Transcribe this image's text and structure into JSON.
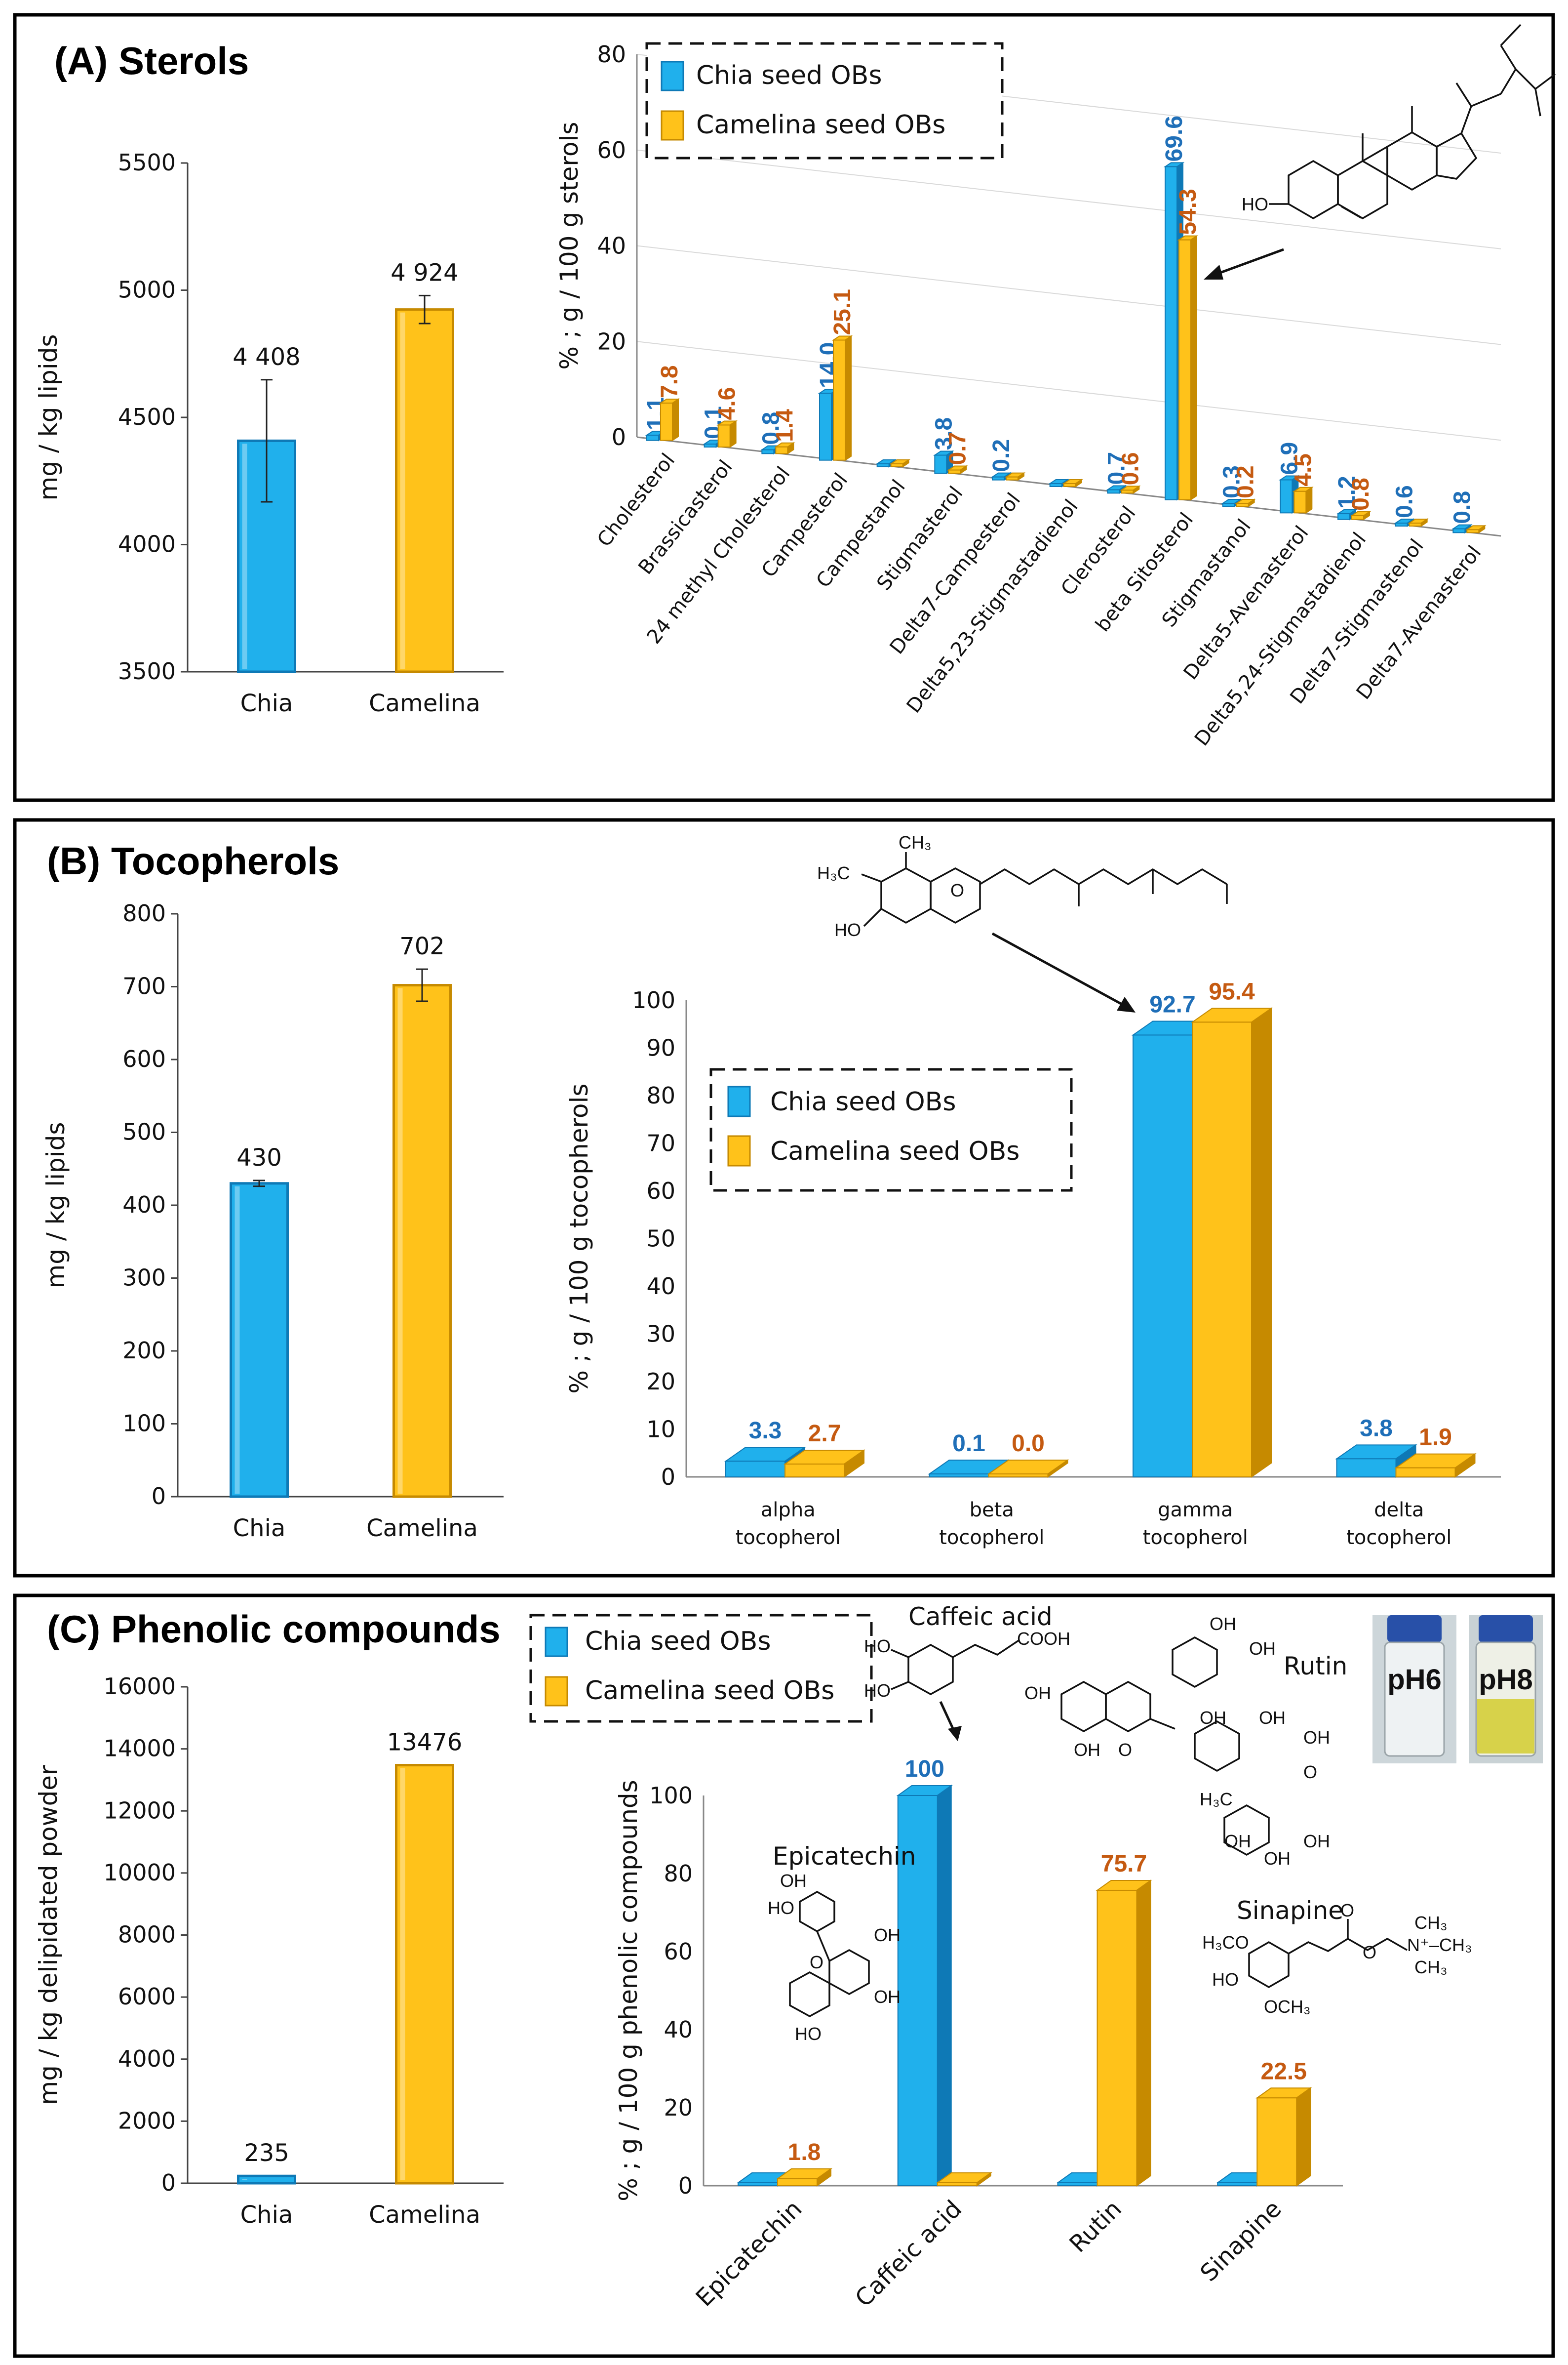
{
  "colors": {
    "chia": "#20B0EC",
    "chia_dark": "#0E79B6",
    "camelina": "#FFC21A",
    "camelina_dark": "#C68A00",
    "chia_label": "#1F6FB8",
    "camelina_label": "#C55A11"
  },
  "legend": {
    "chia": "Chia seed OBs",
    "camelina": "Camelina seed OBs"
  },
  "panels": {
    "A": {
      "title": "(A) Sterols"
    },
    "B": {
      "title": "(B) Tocopherols"
    },
    "C": {
      "title": "(C) Phenolic compounds"
    }
  },
  "structures": {
    "ho": "HO",
    "caffeic": {
      "name": "Caffeic acid",
      "group": "COOH",
      "ho1": "HO",
      "ho2": "HO"
    },
    "rutin": {
      "name": "Rutin",
      "oh": "OH",
      "o": "O",
      "h3c": "H₃C"
    },
    "epicatechin": {
      "name": "Epicatechin",
      "oh": "OH",
      "ho": "HO",
      "o": "O"
    },
    "sinapine": {
      "name": "Sinapine",
      "och3a": "H₃CO",
      "och3b": "OCH₃",
      "ho": "HO",
      "o": "O",
      "n": "N⁺–CH₃",
      "ch3a": "CH₃",
      "ch3b": "CH₃"
    },
    "tocopherol": {
      "ch3": "CH₃",
      "h3c": "H₃C",
      "ho": "HO",
      "o": "O"
    }
  },
  "vials": {
    "left": "pH6",
    "right": "pH8"
  },
  "chart_data": [
    {
      "id": "A-left",
      "type": "bar",
      "title": "",
      "ylabel": "mg / kg lipids",
      "ylim": [
        3500,
        5500
      ],
      "yticks": [
        "3500",
        "4000",
        "4500",
        "5000",
        "5500"
      ],
      "categories": [
        "Chia",
        "Camelina"
      ],
      "values": [
        4408,
        4924
      ],
      "value_labels": [
        "4 408",
        "4 924"
      ],
      "errors": [
        240,
        55
      ]
    },
    {
      "id": "A-right",
      "type": "bar",
      "title": "",
      "ylabel": "% ; g / 100 g sterols",
      "ylim": [
        0,
        80
      ],
      "yticks": [
        "0",
        "20",
        "40",
        "60",
        "80"
      ],
      "categories": [
        "Cholesterol",
        "Brassicasterol",
        "24 methyl Cholesterol",
        "Campesterol",
        "Campestanol",
        "Stigmasterol",
        "Delta7-Campesterol",
        "Delta5,23-Stigmastadienol",
        "Clerosterol",
        "beta Sitosterol",
        "Stigmastanol",
        "Delta5-Avenasterol",
        "Delta5,24-Stigmastadienol",
        "Delta7-Stigmastenol",
        "Delta7-Avenasterol"
      ],
      "series": [
        {
          "name": "Chia seed OBs",
          "values": [
            1.1,
            0.1,
            0.8,
            14.0,
            0,
            3.8,
            0.2,
            0,
            0.7,
            69.6,
            0.3,
            6.9,
            1.2,
            0.6,
            0.8
          ],
          "labels": [
            "1.1",
            "0.1",
            "0.8",
            "14.0",
            "",
            "3.8",
            "0.2",
            "",
            "0.7",
            "69.6",
            "0.3",
            "6.9",
            "1.2",
            "0.6",
            "0.8"
          ]
        },
        {
          "name": "Camelina seed OBs",
          "values": [
            7.8,
            4.6,
            1.4,
            25.1,
            0,
            0.7,
            0,
            0,
            0.6,
            54.3,
            0.2,
            4.5,
            0.8,
            0,
            0
          ],
          "labels": [
            "7.8",
            "4.6",
            "1.4",
            "25.1",
            "",
            "0.7",
            "",
            "",
            "0.6",
            "54.3",
            "0.2",
            "4.5",
            "0.8",
            "",
            ""
          ]
        }
      ]
    },
    {
      "id": "B-left",
      "type": "bar",
      "title": "",
      "ylabel": "mg / kg lipids",
      "ylim": [
        0,
        800
      ],
      "yticks": [
        "0",
        "100",
        "200",
        "300",
        "400",
        "500",
        "600",
        "700",
        "800"
      ],
      "categories": [
        "Chia",
        "Camelina"
      ],
      "values": [
        430,
        702
      ],
      "value_labels": [
        "430",
        "702"
      ],
      "errors": [
        4,
        22
      ]
    },
    {
      "id": "B-right",
      "type": "bar",
      "title": "",
      "ylabel": "% ; g / 100 g tocopherols",
      "ylim": [
        0,
        100
      ],
      "yticks": [
        "0",
        "10",
        "20",
        "30",
        "40",
        "50",
        "60",
        "70",
        "80",
        "90",
        "100"
      ],
      "categories": [
        "alpha tocopherol",
        "beta tocopherol",
        "gamma tocopherol",
        "delta tocopherol"
      ],
      "series": [
        {
          "name": "Chia seed OBs",
          "values": [
            3.3,
            0.1,
            92.7,
            3.8
          ],
          "labels": [
            "3.3",
            "0.1",
            "92.7",
            "3.8"
          ]
        },
        {
          "name": "Camelina seed OBs",
          "values": [
            2.7,
            0.0,
            95.4,
            1.9
          ],
          "labels": [
            "2.7",
            "0.0",
            "95.4",
            "1.9"
          ]
        }
      ]
    },
    {
      "id": "C-left",
      "type": "bar",
      "title": "",
      "ylabel": "mg / kg delipidated powder",
      "ylim": [
        0,
        16000
      ],
      "yticks": [
        "0",
        "2000",
        "4000",
        "6000",
        "8000",
        "10000",
        "12000",
        "14000",
        "16000"
      ],
      "categories": [
        "Chia",
        "Camelina"
      ],
      "values": [
        235,
        13476
      ],
      "value_labels": [
        "235",
        "13476"
      ],
      "errors": [
        0,
        0
      ]
    },
    {
      "id": "C-right",
      "type": "bar",
      "title": "",
      "ylabel": "% ; g / 100 g phenolic compounds",
      "ylim": [
        0,
        100
      ],
      "yticks": [
        "0",
        "20",
        "40",
        "60",
        "80",
        "100"
      ],
      "categories": [
        "Epicatechin",
        "Caffeic acid",
        "Rutin",
        "Sinapine"
      ],
      "series": [
        {
          "name": "Chia seed OBs",
          "values": [
            0,
            100,
            0,
            0
          ],
          "labels": [
            "",
            "100",
            "",
            ""
          ]
        },
        {
          "name": "Camelina seed OBs",
          "values": [
            1.8,
            0,
            75.7,
            22.5
          ],
          "labels": [
            "1.8",
            "",
            "75.7",
            "22.5"
          ]
        }
      ]
    }
  ]
}
